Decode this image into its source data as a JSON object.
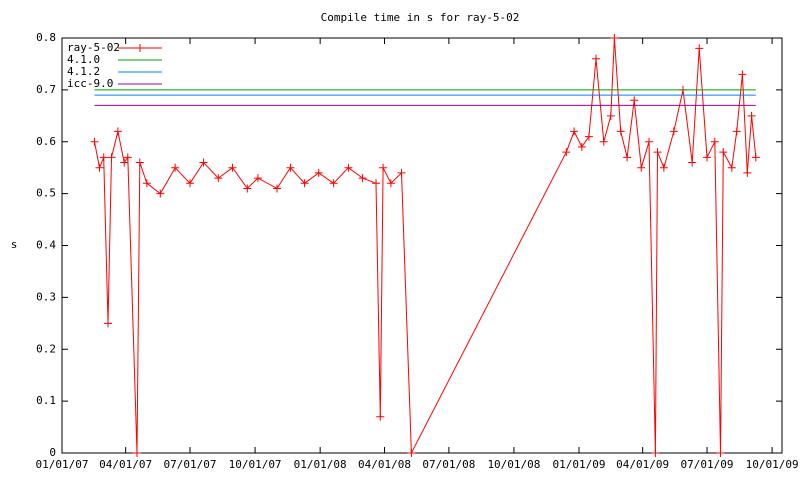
{
  "chart_data": {
    "type": "line",
    "title": "Compile time in s for ray-5-02",
    "y_label": "s",
    "xlim": [
      "01/01/07",
      "10/15/09"
    ],
    "xticks": [
      "01/01/07",
      "04/01/07",
      "07/01/07",
      "10/01/07",
      "01/01/08",
      "04/01/08",
      "07/01/08",
      "10/01/08",
      "01/01/09",
      "04/01/09",
      "07/01/09",
      "10/01/09"
    ],
    "ylim": [
      0,
      0.8
    ],
    "yticks": [
      0,
      0.1,
      0.2,
      0.3,
      0.4,
      0.5,
      0.6,
      0.7,
      0.8
    ],
    "legend": "top-left",
    "series": [
      {
        "name": "ray-5-02",
        "color": "#ff0000",
        "marker": "+",
        "x": [
          "02/16/07",
          "02/23/07",
          "03/01/07",
          "03/07/07",
          "03/12/07",
          "03/21/07",
          "03/30/07",
          "04/04/07",
          "04/17/07",
          "04/21/07",
          "05/01/07",
          "05/20/07",
          "06/10/07",
          "07/01/07",
          "07/20/07",
          "08/10/07",
          "08/30/07",
          "09/20/07",
          "10/05/07",
          "11/01/07",
          "11/20/07",
          "12/10/07",
          "12/30/07",
          "01/20/08",
          "02/10/08",
          "03/01/08",
          "03/20/08",
          "03/26/08",
          "03/30/08",
          "04/10/08",
          "04/25/08",
          "05/09/08",
          "12/14/08",
          "12/25/08",
          "01/05/09",
          "01/15/09",
          "01/25/09",
          "02/05/09",
          "02/15/09",
          "02/20/09",
          "03/01/09",
          "03/10/09",
          "03/20/09",
          "03/30/09",
          "04/10/09",
          "04/19/09",
          "04/22/09",
          "05/01/09",
          "05/15/09",
          "05/28/09",
          "06/10/09",
          "06/20/09",
          "07/01/09",
          "07/12/09",
          "07/20/09",
          "07/24/09",
          "08/05/09",
          "08/12/09",
          "08/20/09",
          "08/27/09",
          "09/02/09",
          "09/08/09"
        ],
        "values": [
          0.6,
          0.55,
          0.57,
          0.25,
          0.57,
          0.62,
          0.56,
          0.57,
          0.0,
          0.56,
          0.52,
          0.5,
          0.55,
          0.52,
          0.56,
          0.53,
          0.55,
          0.51,
          0.53,
          0.51,
          0.55,
          0.52,
          0.54,
          0.52,
          0.55,
          0.53,
          0.52,
          0.07,
          0.55,
          0.52,
          0.54,
          0.0,
          0.58,
          0.62,
          0.59,
          0.61,
          0.76,
          0.6,
          0.65,
          0.8,
          0.62,
          0.57,
          0.68,
          0.55,
          0.6,
          0.0,
          0.58,
          0.55,
          0.62,
          0.7,
          0.56,
          0.78,
          0.57,
          0.6,
          0.0,
          0.58,
          0.55,
          0.62,
          0.73,
          0.54,
          0.65,
          0.57
        ]
      },
      {
        "name": "4.1.0",
        "color": "#00a000",
        "x": [
          "02/16/07",
          "09/08/09"
        ],
        "values": [
          0.7,
          0.7
        ]
      },
      {
        "name": "4.1.2",
        "color": "#0080ff",
        "x": [
          "02/16/07",
          "09/08/09"
        ],
        "values": [
          0.69,
          0.69
        ]
      },
      {
        "name": "icc-9.0",
        "color": "#a000a0",
        "x": [
          "02/16/07",
          "09/08/09"
        ],
        "values": [
          0.67,
          0.67
        ]
      }
    ]
  }
}
